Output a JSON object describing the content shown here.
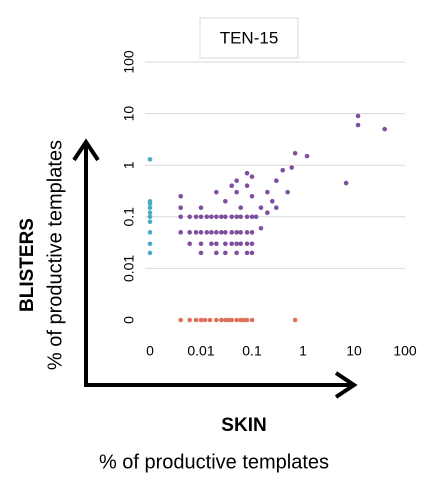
{
  "chart_data": {
    "type": "scatter",
    "title": "TEN-15",
    "xlabel": "SKIN",
    "xlabel_sub": "% of productive templates",
    "ylabel": "BLISTERS",
    "ylabel_sub": "% of productive templates",
    "log_scale": true,
    "grid": true,
    "xlim": [
      0,
      100
    ],
    "xticks": [
      0,
      0.01,
      0.1,
      1,
      10,
      100
    ],
    "ylim": [
      0,
      100
    ],
    "yticks": [
      0,
      0.01,
      0.1,
      1,
      10,
      100
    ],
    "series": [
      {
        "color": "#7f4f9f",
        "x": [
          0.004,
          0.006,
          0.008,
          0.01,
          0.013,
          0.016,
          0.02,
          0.025,
          0.03,
          0.04,
          0.05,
          0.06,
          0.08,
          0.1,
          0.004,
          0.006,
          0.008,
          0.01,
          0.013,
          0.016,
          0.02,
          0.025,
          0.03,
          0.04,
          0.05,
          0.06,
          0.08,
          0.1,
          0.006,
          0.01,
          0.016,
          0.02,
          0.03,
          0.04,
          0.05,
          0.06,
          0.08,
          0.1,
          0.01,
          0.02,
          0.03,
          0.05,
          0.08,
          0.1,
          0.004,
          0.004,
          0.01,
          0.02,
          0.03,
          0.04,
          0.05,
          0.06,
          0.08,
          0.1,
          0.12,
          0.15,
          0.2,
          0.25,
          0.3,
          0.4,
          0.5,
          0.6,
          0.7,
          1.2,
          7,
          12,
          12,
          40,
          0.15,
          0.2,
          0.3,
          0.08,
          0.05,
          0.1
        ],
        "values": [
          0.1,
          0.1,
          0.1,
          0.1,
          0.1,
          0.1,
          0.1,
          0.1,
          0.1,
          0.1,
          0.1,
          0.1,
          0.1,
          0.1,
          0.05,
          0.05,
          0.05,
          0.05,
          0.05,
          0.05,
          0.05,
          0.05,
          0.05,
          0.05,
          0.05,
          0.05,
          0.05,
          0.05,
          0.03,
          0.03,
          0.03,
          0.03,
          0.03,
          0.03,
          0.03,
          0.03,
          0.03,
          0.03,
          0.02,
          0.02,
          0.02,
          0.02,
          0.02,
          0.02,
          0.25,
          0.15,
          0.15,
          0.3,
          0.2,
          0.4,
          0.3,
          0.15,
          0.4,
          0.25,
          0.1,
          0.15,
          0.3,
          0.2,
          0.5,
          0.8,
          0.3,
          0.9,
          1.7,
          1.5,
          0.45,
          9,
          6,
          5,
          0.06,
          0.12,
          0.15,
          0.7,
          0.5,
          0.6
        ]
      },
      {
        "color": "#4bacc6",
        "x": [
          0,
          0,
          0,
          0,
          0,
          0,
          0,
          0,
          0,
          0
        ],
        "values": [
          1.3,
          0.2,
          0.18,
          0.15,
          0.12,
          0.1,
          0.08,
          0.05,
          0.03,
          0.02
        ]
      },
      {
        "color": "#e0705a",
        "x": [
          0.004,
          0.006,
          0.008,
          0.01,
          0.012,
          0.015,
          0.02,
          0.025,
          0.03,
          0.035,
          0.04,
          0.05,
          0.06,
          0.07,
          0.08,
          0.1,
          0.7
        ],
        "values": [
          0,
          0,
          0,
          0,
          0,
          0,
          0,
          0,
          0,
          0,
          0,
          0,
          0,
          0,
          0,
          0,
          0
        ]
      }
    ]
  }
}
